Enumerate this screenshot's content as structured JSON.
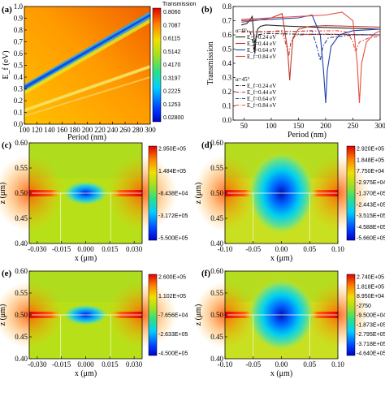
{
  "chart_data": [
    {
      "panel": "(a)",
      "type": "heatmap",
      "xlabel": "Period (nm)",
      "ylabel": "E_f (eV)",
      "xlim": [
        100,
        300
      ],
      "ylim": [
        0.0,
        1.0
      ],
      "x_ticks": [
        "100",
        "120",
        "140",
        "160",
        "180",
        "200",
        "220",
        "240",
        "260",
        "280",
        "300"
      ],
      "y_ticks": [
        "0.0",
        "0.1",
        "0.2",
        "0.3",
        "0.4",
        "0.5",
        "0.6",
        "0.7",
        "0.8",
        "0.9",
        "1.0"
      ],
      "colorbar_title": "Transmission",
      "colorbar_ticks": [
        "0.8060",
        "0.7087",
        "0.6115",
        "0.5142",
        "0.4170",
        "0.3197",
        "0.2225",
        "0.1253",
        "0.02800"
      ],
      "resonance_bands": [
        {
          "from": [
            100,
            0.33
          ],
          "to": [
            300,
            0.95
          ],
          "role": "primary"
        },
        {
          "from": [
            100,
            0.16
          ],
          "to": [
            300,
            0.5
          ],
          "role": "secondary"
        },
        {
          "from": [
            100,
            0.1
          ],
          "to": [
            300,
            0.4
          ],
          "role": "faint"
        }
      ]
    },
    {
      "panel": "(b)",
      "type": "line",
      "xlabel": "Period (nm)",
      "ylabel": "Transmission",
      "xlim": [
        30,
        300
      ],
      "ylim": [
        0.0,
        0.8
      ],
      "x_ticks": [
        "50",
        "100",
        "150",
        "200",
        "250",
        "300"
      ],
      "y_ticks": [
        "0.0",
        "0.1",
        "0.2",
        "0.3",
        "0.4",
        "0.5",
        "0.6",
        "0.7",
        "0.8"
      ],
      "legend_groups": [
        "α=0°",
        "α=45°"
      ],
      "series": [
        {
          "name": "E_f=0.24 eV",
          "group": "α=0°",
          "color": "#222222",
          "dash": "solid",
          "x": [
            45,
            55,
            60,
            65,
            68,
            70,
            72,
            75,
            80,
            90,
            110,
            140,
            180,
            220,
            260,
            300
          ],
          "y": [
            0.67,
            0.68,
            0.7,
            0.73,
            0.6,
            0.47,
            0.58,
            0.64,
            0.66,
            0.67,
            0.665,
            0.66,
            0.655,
            0.65,
            0.645,
            0.64
          ]
        },
        {
          "name": "E_f=0.44 eV",
          "group": "α=0°",
          "color": "#c0392b",
          "dash": "solid",
          "x": [
            45,
            70,
            100,
            120,
            130,
            134,
            136,
            140,
            150,
            170,
            200,
            250,
            300
          ],
          "y": [
            0.69,
            0.7,
            0.72,
            0.75,
            0.5,
            0.28,
            0.4,
            0.58,
            0.64,
            0.66,
            0.665,
            0.66,
            0.655
          ]
        },
        {
          "name": "E_f=0.64 eV",
          "group": "α=0°",
          "color": "#1f3fae",
          "dash": "solid",
          "x": [
            45,
            100,
            150,
            175,
            190,
            196,
            200,
            203,
            210,
            225,
            250,
            300
          ],
          "y": [
            0.7,
            0.71,
            0.72,
            0.74,
            0.6,
            0.35,
            0.12,
            0.35,
            0.52,
            0.6,
            0.63,
            0.64
          ]
        },
        {
          "name": "E_f=0.84 eV",
          "group": "α=0°",
          "color": "#e74c3c",
          "dash": "solid",
          "x": [
            45,
            100,
            150,
            200,
            230,
            250,
            258,
            262,
            266,
            275,
            290,
            300
          ],
          "y": [
            0.71,
            0.72,
            0.73,
            0.74,
            0.76,
            0.7,
            0.4,
            0.12,
            0.4,
            0.55,
            0.61,
            0.63
          ]
        },
        {
          "name": "E_f=0.24 eV",
          "group": "α=45°",
          "color": "#222222",
          "dash": "dashdot",
          "x": [
            45,
            60,
            65,
            68,
            70,
            72,
            75,
            90,
            150,
            300
          ],
          "y": [
            0.62,
            0.63,
            0.58,
            0.5,
            0.55,
            0.58,
            0.6,
            0.61,
            0.605,
            0.6
          ]
        },
        {
          "name": "E_f=0.44 eV",
          "group": "α=45°",
          "color": "#c0392b",
          "dash": "dashdot",
          "x": [
            45,
            100,
            120,
            128,
            132,
            136,
            145,
            200,
            300
          ],
          "y": [
            0.62,
            0.625,
            0.63,
            0.52,
            0.45,
            0.55,
            0.6,
            0.605,
            0.6
          ]
        },
        {
          "name": "E_f=0.64 eV",
          "group": "α=45°",
          "color": "#1f3fae",
          "dash": "dashdot",
          "x": [
            45,
            150,
            175,
            185,
            190,
            195,
            205,
            250,
            300
          ],
          "y": [
            0.62,
            0.625,
            0.63,
            0.5,
            0.42,
            0.52,
            0.58,
            0.6,
            0.6
          ]
        },
        {
          "name": "E_f=0.84 eV",
          "group": "α=45°",
          "color": "#e74c3c",
          "dash": "dashdot",
          "x": [
            45,
            150,
            220,
            240,
            250,
            255,
            262,
            280,
            300
          ],
          "y": [
            0.62,
            0.625,
            0.63,
            0.62,
            0.55,
            0.48,
            0.55,
            0.58,
            0.59
          ]
        }
      ]
    },
    {
      "panel": "(c)",
      "type": "heatmap",
      "xlabel": "x (μm)",
      "ylabel": "z (μm)",
      "xlim": [
        -0.035,
        0.035
      ],
      "ylim": [
        0.4,
        0.6
      ],
      "x_ticks": [
        "-0.030",
        "-0.015",
        "0.000",
        "0.015",
        "0.030"
      ],
      "y_ticks": [
        "0.40",
        "0.45",
        "0.50",
        "0.55",
        "0.60"
      ],
      "colorbar_ticks": [
        "2.950E+05",
        "1.484E+05",
        "-8.438E+04",
        "-3.172E+05",
        "-5.500E+05"
      ],
      "slit_x": [
        -0.0155,
        0.0155
      ]
    },
    {
      "panel": "(d)",
      "type": "heatmap",
      "xlabel": "x (μm)",
      "ylabel": "z (μm)",
      "xlim": [
        -0.1,
        0.1
      ],
      "ylim": [
        0.4,
        0.6
      ],
      "x_ticks": [
        "-0.10",
        "-0.05",
        "0.00",
        "0.05",
        "0.10"
      ],
      "y_ticks": [
        "0.40",
        "0.45",
        "0.50",
        "0.55",
        "0.60"
      ],
      "colorbar_ticks": [
        "2.920E+05",
        "1.848E+05",
        "7.750E+04",
        "-2.975E+04",
        "-1.370E+05",
        "-2.443E+05",
        "-3.515E+05",
        "-4.588E+05",
        "-5.660E+05"
      ],
      "slit_x": [
        -0.05,
        0.05
      ]
    },
    {
      "panel": "(e)",
      "type": "heatmap",
      "xlabel": "x (μm)",
      "ylabel": "z (μm)",
      "xlim": [
        -0.035,
        0.035
      ],
      "ylim": [
        0.4,
        0.6
      ],
      "x_ticks": [
        "-0.030",
        "-0.015",
        "0.000",
        "0.015",
        "0.030"
      ],
      "y_ticks": [
        "0.40",
        "0.45",
        "0.50",
        "0.55",
        "0.60"
      ],
      "colorbar_ticks": [
        "2.600E+05",
        "1.102E+05",
        "-7.656E+04",
        "-2.633E+05",
        "-4.500E+05"
      ],
      "slit_x": [
        -0.0155,
        0.0155
      ]
    },
    {
      "panel": "(f)",
      "type": "heatmap",
      "xlabel": "x (μm)",
      "ylabel": "z (μm)",
      "xlim": [
        -0.1,
        0.1
      ],
      "ylim": [
        0.4,
        0.6
      ],
      "x_ticks": [
        "-0.10",
        "-0.05",
        "0.00",
        "0.05",
        "0.10"
      ],
      "y_ticks": [
        "0.40",
        "0.45",
        "0.50",
        "0.55",
        "0.60"
      ],
      "colorbar_ticks": [
        "2.740E+05",
        "1.818E+05",
        "8.950E+04",
        "-2750",
        "-9.500E+04",
        "-1.873E+05",
        "-2.795E+05",
        "-3.718E+05",
        "-4.640E+05"
      ],
      "slit_x": [
        -0.05,
        0.05
      ]
    }
  ]
}
